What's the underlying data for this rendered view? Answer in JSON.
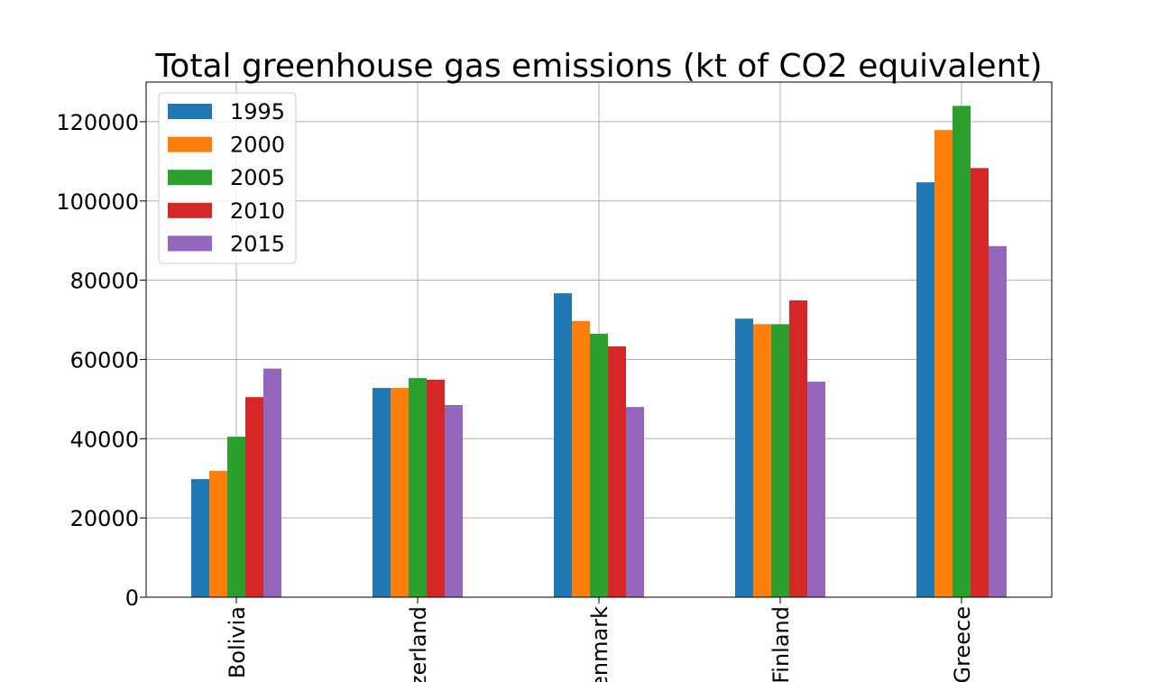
{
  "chart_data": {
    "type": "bar",
    "title": "Total greenhouse gas emissions (kt of CO2 equivalent)",
    "xlabel": "",
    "ylabel": "",
    "categories": [
      "Bolivia",
      "Switzerland",
      "Denmark",
      "Finland",
      "Greece"
    ],
    "visible_category_labels": [
      "Bolivia",
      "zerland",
      "enmark",
      "Finland",
      "Greece"
    ],
    "series": [
      {
        "name": "1995",
        "color": "#1f77b4",
        "values": [
          29800,
          52800,
          76700,
          70300,
          104700
        ]
      },
      {
        "name": "2000",
        "color": "#ff7f0e",
        "values": [
          31900,
          52800,
          69700,
          68900,
          117900
        ]
      },
      {
        "name": "2005",
        "color": "#2ca02c",
        "values": [
          40500,
          55300,
          66500,
          68900,
          124000
        ]
      },
      {
        "name": "2010",
        "color": "#d62728",
        "values": [
          50500,
          54900,
          63300,
          74900,
          108300
        ]
      },
      {
        "name": "2015",
        "color": "#9467bd",
        "values": [
          57700,
          48500,
          48000,
          54400,
          88600
        ]
      }
    ],
    "ylim": [
      0,
      130000
    ],
    "yticks": [
      0,
      20000,
      40000,
      60000,
      80000,
      100000,
      120000
    ],
    "ytick_labels": [
      "0",
      "20000",
      "40000",
      "60000",
      "80000",
      "100000",
      "120000"
    ],
    "grid": true,
    "legend_position": "top-left"
  }
}
